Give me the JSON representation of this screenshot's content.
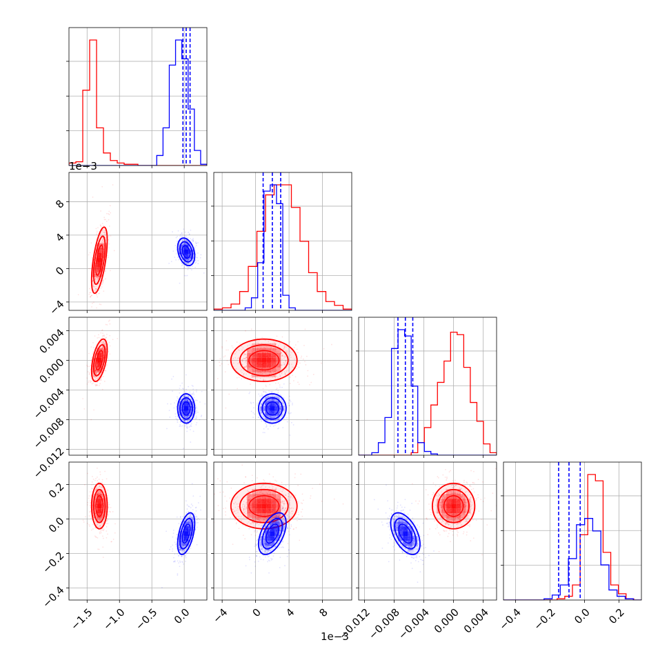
{
  "chart_data": {
    "type": "corner",
    "title": "",
    "grid": true,
    "parameters": [
      {
        "xlim": [
          -1.78,
          0.35
        ],
        "ticks": [
          -1.5,
          -1.0,
          -0.5,
          0.0
        ],
        "tick_labels": [
          "−1.5",
          "−1.0",
          "−0.5",
          "0.0"
        ],
        "offset_label": ""
      },
      {
        "xlim": [
          -5.0,
          11.5
        ],
        "ticks": [
          -4,
          0,
          4,
          8
        ],
        "tick_labels": [
          "−4",
          "0",
          "4",
          "8"
        ],
        "offset_label": "1e−3"
      },
      {
        "xlim": [
          -0.0128,
          0.0058
        ],
        "ticks": [
          -0.012,
          -0.008,
          -0.004,
          0.0,
          0.004
        ],
        "tick_labels": [
          "−0.012",
          "−0.008",
          "−0.004",
          "0.000",
          "0.004"
        ],
        "offset_label": ""
      },
      {
        "xlim": [
          -0.47,
          0.33
        ],
        "ticks": [
          -0.4,
          -0.2,
          0.0,
          0.2
        ],
        "tick_labels": [
          "−0.4",
          "−0.2",
          "0.0",
          "0.2"
        ],
        "offset_label": ""
      }
    ],
    "series": [
      {
        "color": "#ff0000",
        "quantile_lines": false,
        "mean": [
          -1.31,
          1.0,
          0.0,
          0.075
        ],
        "std": [
          0.055,
          1.8,
          0.0013,
          0.06
        ],
        "corr": [
          [
            0,
            0.6,
            0.5,
            0.0
          ],
          [
            0.6,
            0,
            0.0,
            0.0
          ],
          [
            0.5,
            0.0,
            0,
            0.0
          ],
          [
            0.0,
            0.0,
            0.0,
            0
          ]
        ],
        "hist_bins": [
          {
            "edges": [
              -1.78,
              0.35
            ],
            "counts": [
              2,
              3,
              60,
              100,
              30,
              10,
              4,
              2,
              1,
              1,
              0,
              0,
              0,
              0,
              0,
              0,
              0,
              0,
              0,
              0
            ]
          },
          {
            "edges": [
              -5.0,
              11.5
            ],
            "counts": [
              1,
              2,
              5,
              15,
              35,
              63,
              92,
              100,
              100,
              82,
              55,
              30,
              15,
              7,
              4,
              1
            ]
          },
          {
            "edges": [
              -0.0128,
              0.0058
            ],
            "counts": [
              0,
              0,
              0,
              0,
              0,
              0,
              0,
              0,
              2,
              10,
              22,
              40,
              58,
              75,
              98,
              96,
              70,
              42,
              27,
              9,
              2
            ]
          },
          {
            "edges": [
              -0.47,
              0.33
            ],
            "counts": [
              0,
              0,
              0,
              0,
              0,
              0,
              0,
              1,
              3,
              12,
              52,
              100,
              95,
              38,
              12,
              5,
              1,
              0
            ]
          }
        ]
      },
      {
        "color": "#0000ff",
        "quantile_lines": true,
        "mean": [
          0.03,
          2.0,
          -0.0065,
          -0.085
        ],
        "std": [
          0.06,
          0.75,
          0.0009,
          0.055
        ],
        "corr": [
          [
            0,
            -0.3,
            0.0,
            0.5
          ],
          [
            -0.3,
            0,
            0.0,
            0.5
          ],
          [
            0.0,
            0.0,
            0,
            -0.5
          ],
          [
            0.5,
            0.5,
            -0.5,
            0
          ]
        ],
        "quantiles": [
          [
            -0.02,
            0.03,
            0.09
          ],
          [
            0.9,
            2.0,
            3.0
          ],
          [
            -0.0075,
            -0.0065,
            -0.0055
          ],
          [
            -0.15,
            -0.09,
            -0.025
          ]
        ],
        "hist_bins": [
          {
            "edges": [
              -1.78,
              0.35
            ],
            "counts": [
              0,
              0,
              0,
              0,
              0,
              0,
              0,
              0,
              0,
              0,
              0,
              0,
              0,
              0,
              8,
              30,
              80,
              100,
              85,
              45,
              12,
              1
            ]
          },
          {
            "edges": [
              -5.0,
              11.5
            ],
            "counts": [
              0,
              0,
              0,
              0,
              0,
              2,
              10,
              38,
              95,
              100,
              85,
              12,
              2,
              0,
              0,
              0,
              0,
              0,
              0,
              0,
              0,
              0
            ]
          },
          {
            "edges": [
              -0.0128,
              0.0058
            ],
            "counts": [
              0,
              0,
              2,
              10,
              30,
              85,
              100,
              95,
              55,
              10,
              3,
              1,
              0,
              0,
              0,
              0,
              0,
              0,
              0,
              0,
              0
            ]
          },
          {
            "edges": [
              -0.47,
              0.33
            ],
            "counts": [
              0,
              0,
              0,
              0,
              0,
              1,
              4,
              12,
              33,
              60,
              65,
              55,
              28,
              8,
              3,
              1,
              0
            ]
          }
        ]
      }
    ]
  }
}
